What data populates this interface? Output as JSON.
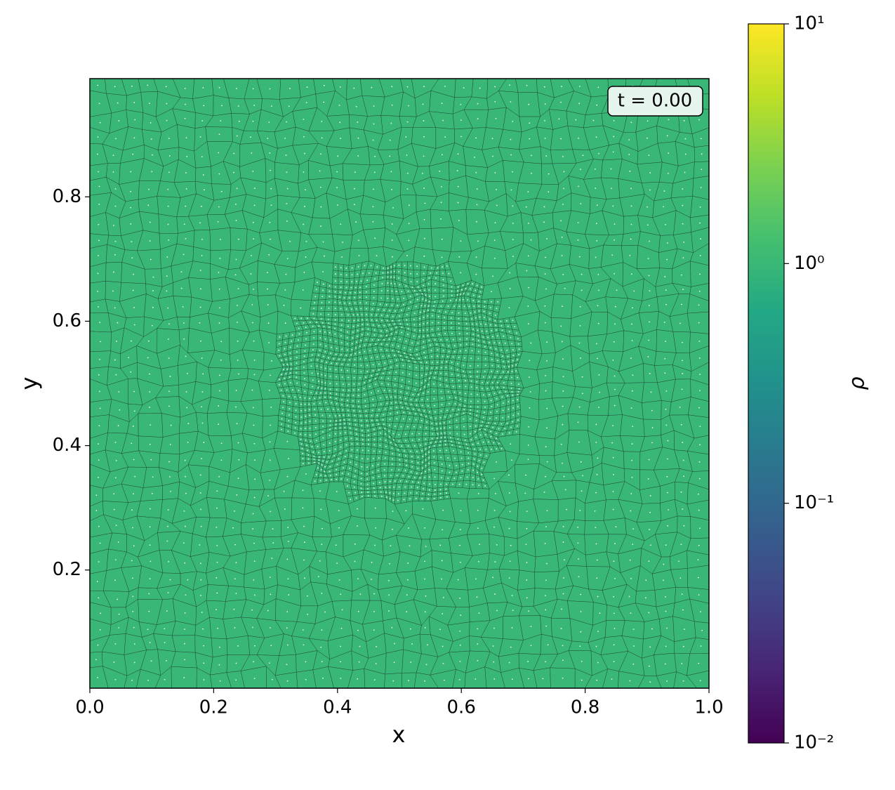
{
  "chart_data": {
    "type": "mesh",
    "xlabel": "x",
    "ylabel": "y",
    "xlim": [
      0,
      1
    ],
    "ylim": [
      0.01,
      0.99
    ],
    "xticks": [
      {
        "value": 0,
        "label": "0.0"
      },
      0.2,
      0.4,
      0.6,
      0.8,
      {
        "value": 1,
        "label": "1.0"
      }
    ],
    "yticks": [
      0.2,
      0.4,
      0.6,
      0.8
    ],
    "value": 1,
    "annotation": "t = 0.00",
    "colormap": "viridis",
    "color_log_scale": true,
    "clim": [
      0.01,
      10
    ],
    "cticks": [
      {
        "value": 0.01,
        "label": "10⁻²"
      },
      {
        "value": 0.1,
        "label": "10⁻¹"
      },
      {
        "value": 1,
        "label": "10⁰"
      },
      {
        "value": 10,
        "label": "10¹"
      }
    ],
    "clabel": "ρ"
  }
}
